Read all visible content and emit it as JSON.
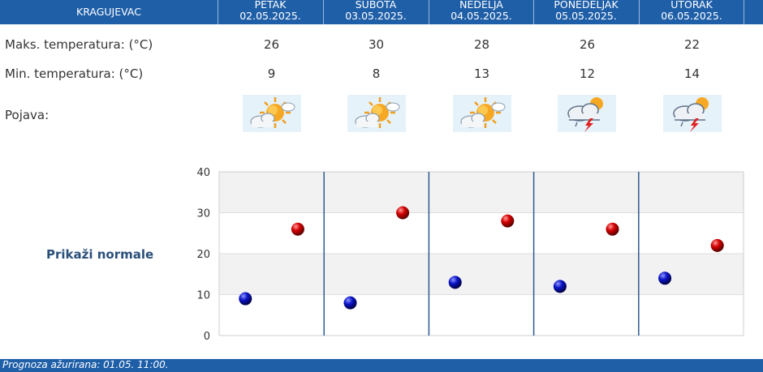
{
  "header": {
    "city": "KRAGUJEVAC",
    "days": [
      {
        "name": "PETAK",
        "date": "02.05.2025."
      },
      {
        "name": "SUBOTA",
        "date": "03.05.2025."
      },
      {
        "name": "NEDELJA",
        "date": "04.05.2025."
      },
      {
        "name": "PONEDELJAK",
        "date": "05.05.2025."
      },
      {
        "name": "UTORAK",
        "date": "06.05.2025."
      }
    ]
  },
  "rows": {
    "max_label": "Maks. temperatura: (°C)",
    "min_label": "Min. temperatura: (°C)",
    "phenomenon_label": "Pojava:",
    "max_values": [
      "26",
      "30",
      "28",
      "26",
      "22"
    ],
    "min_values": [
      "9",
      "8",
      "13",
      "12",
      "14"
    ],
    "icons": [
      "partly-sunny-icon",
      "partly-sunny-icon",
      "partly-sunny-icon",
      "thunderstorm-icon",
      "thunderstorm-icon"
    ]
  },
  "normals_link": "Prikaži normale",
  "footer": {
    "updated": "Prognoza ažurirana:  01.05. 11:00."
  },
  "colors": {
    "header": "#1f5fa8",
    "max_marker": "#cc0000",
    "min_marker": "#0a14b4",
    "separator": "#2b5a8f"
  },
  "chart_data": {
    "type": "scatter",
    "categories": [
      "02.05.2025.",
      "03.05.2025.",
      "04.05.2025.",
      "05.05.2025.",
      "06.05.2025."
    ],
    "series": [
      {
        "values": [
          9,
          8,
          13,
          12,
          14
        ]
      },
      {
        "values": [
          26,
          30,
          28,
          26,
          22
        ]
      }
    ],
    "ylim": [
      0,
      40
    ],
    "yticks": [
      "0",
      "10",
      "20",
      "30",
      "40"
    ],
    "grid": true,
    "legend": "none"
  }
}
